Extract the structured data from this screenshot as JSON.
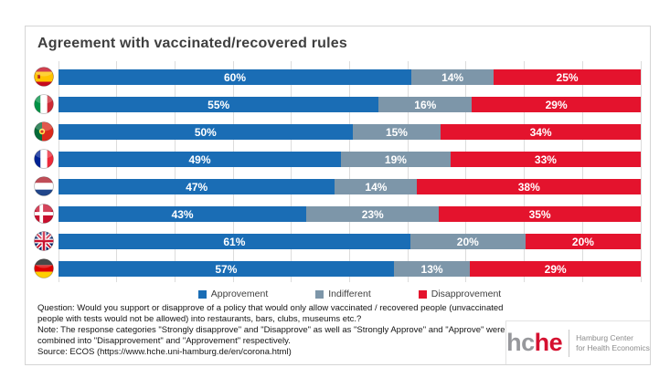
{
  "title": "Agreement with vaccinated/recovered rules",
  "chart_data": {
    "type": "bar",
    "stacked": true,
    "percent_stacked": true,
    "orientation": "horizontal",
    "categories": [
      {
        "country": "Spain",
        "flag": "spain"
      },
      {
        "country": "Italy",
        "flag": "italy"
      },
      {
        "country": "Portugal",
        "flag": "portugal"
      },
      {
        "country": "France",
        "flag": "france"
      },
      {
        "country": "Netherlands",
        "flag": "netherlands"
      },
      {
        "country": "Denmark",
        "flag": "denmark"
      },
      {
        "country": "United Kingdom",
        "flag": "uk"
      },
      {
        "country": "Germany",
        "flag": "germany"
      }
    ],
    "series": [
      {
        "name": "Approvement",
        "color": "#1a6db5",
        "values": [
          60,
          55,
          50,
          49,
          47,
          43,
          61,
          57
        ]
      },
      {
        "name": "Indifferent",
        "color": "#7d96a9",
        "values": [
          14,
          16,
          15,
          19,
          14,
          23,
          20,
          13
        ]
      },
      {
        "name": "Disapprovement",
        "color": "#e4132d",
        "values": [
          25,
          29,
          34,
          33,
          38,
          35,
          20,
          29
        ]
      }
    ],
    "value_suffix": "%",
    "xlim": [
      0,
      100
    ],
    "gridlines_every": 10,
    "grid": true,
    "legend_position": "bottom"
  },
  "footnote": {
    "question": "Question: Would you support or disapprove of a policy that would only allow vaccinated / recovered people (unvaccinated people with tests would not be allowed) into restaurants, bars, clubs, museums etc.?",
    "note": "Note: The response categories \"Strongly disapprove\" and \"Disapprove\" as well as \"Strongly Approve\" and \"Approve\" were combined into \"Disapprovement\" and \"Approvement\" respectively.",
    "source": "Source: ECOS (https://www.hche.uni-hamburg.de/en/corona.html)"
  },
  "logo": {
    "word_gray": "hc",
    "word_red": "he",
    "tagline_line1": "Hamburg Center",
    "tagline_line2": "for Health Economics"
  },
  "ui_colors": {
    "gridline": "#dcdcdc",
    "card_border": "#d5d5d5",
    "title_text": "#3f3f3f",
    "bar_label_text": "#ffffff",
    "legend_text": "#404040",
    "logo_gray": "#97989c",
    "logo_red": "#d51130"
  }
}
